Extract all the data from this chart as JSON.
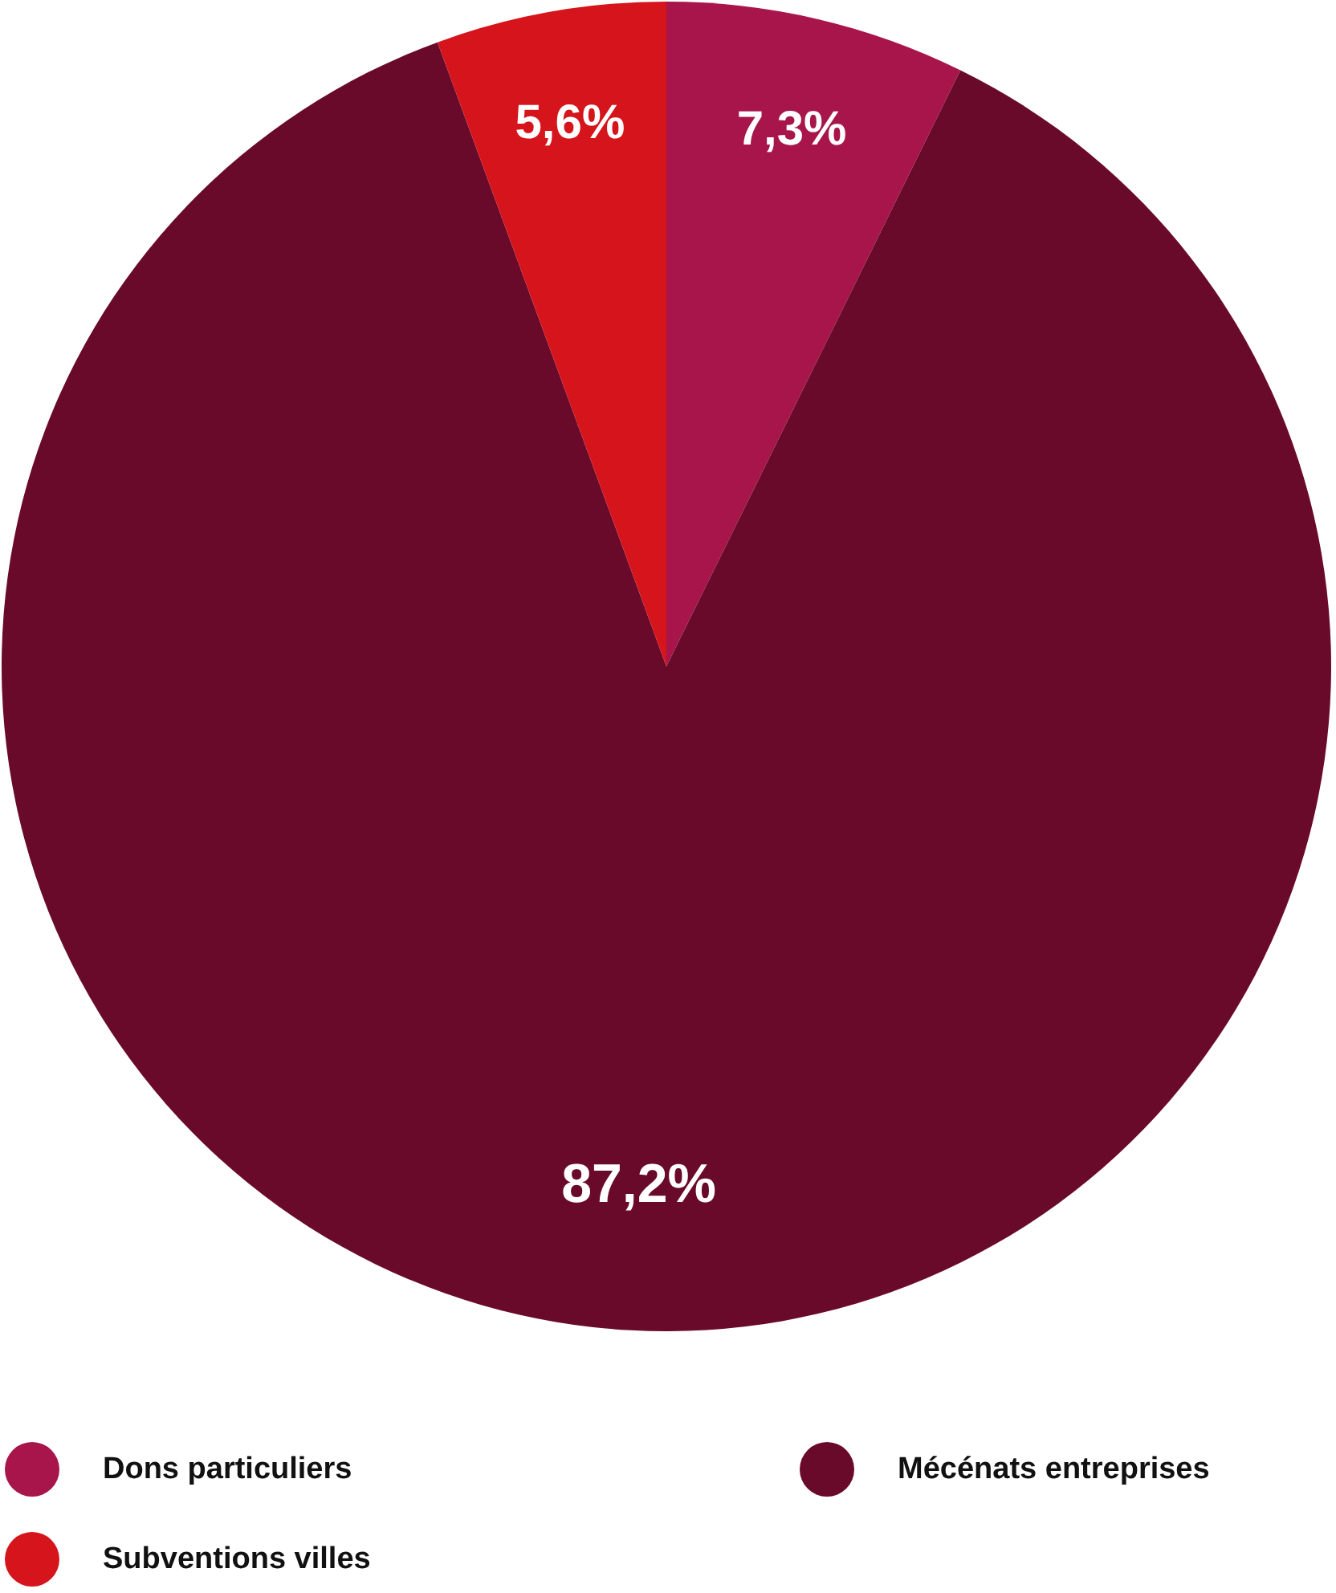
{
  "chart_data": {
    "type": "pie",
    "categories": [
      "Dons particuliers",
      "Mécénats entreprises",
      "Subventions villes"
    ],
    "values": [
      7.3,
      87.2,
      5.6
    ],
    "colors": [
      "#a8154a",
      "#6a0a2a",
      "#d5141b"
    ],
    "value_labels": [
      "7,3%",
      "87,2%",
      "5,6%"
    ],
    "legend": "bottom"
  }
}
